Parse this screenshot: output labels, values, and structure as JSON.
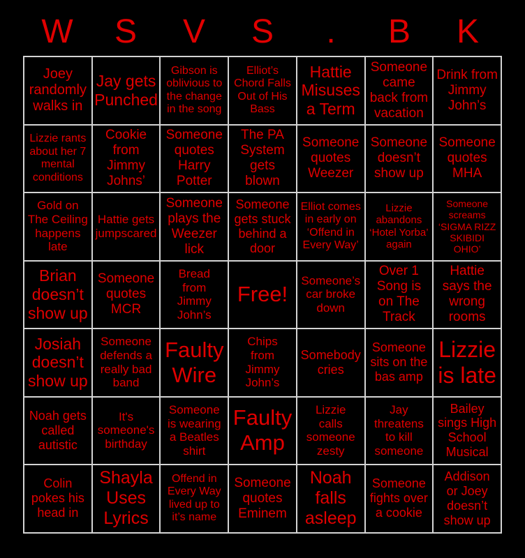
{
  "colors": {
    "background": "#000000",
    "cell_background": "#000000",
    "cell_text": "#e00000",
    "title_text": "#e00000",
    "grid_line": "#d4d4d4"
  },
  "title": {
    "text": "W S V S . B K",
    "letters": [
      "W",
      "S",
      "V",
      "S",
      ".",
      "B",
      "K"
    ]
  },
  "grid": {
    "rows": [
      [
        {
          "text": "Joey\nrandomly\nwalks in",
          "size": 20
        },
        {
          "text": "Jay gets\nPunched",
          "size": 23
        },
        {
          "text": "Gibson is\noblivious to\nthe change\nin the song",
          "size": 16
        },
        {
          "text": "Elliot’s\nChord Falls\nOut of His\nBass",
          "size": 16
        },
        {
          "text": "Hattie\nMisuses\na Term",
          "size": 23
        },
        {
          "text": "Someone\ncame\nback from\nvacation",
          "size": 19
        },
        {
          "text": "Drink from\nJimmy\nJohn’s",
          "size": 19
        }
      ],
      [
        {
          "text": "Lizzie rants\nabout her 7\nmental\nconditions",
          "size": 16
        },
        {
          "text": "Cookie\nfrom\nJimmy\nJohns’",
          "size": 19
        },
        {
          "text": "Someone\nquotes\nHarry\nPotter",
          "size": 19
        },
        {
          "text": "The PA\nSystem\ngets\nblown",
          "size": 19
        },
        {
          "text": "Someone\nquotes\nWeezer",
          "size": 19
        },
        {
          "text": "Someone\ndoesn’t\nshow up",
          "size": 19
        },
        {
          "text": "Someone\nquotes\nMHA",
          "size": 19
        }
      ],
      [
        {
          "text": "Gold on\nThe Ceiling\nhappens\nlate",
          "size": 17
        },
        {
          "text": "Hattie gets\njumpscared",
          "size": 17
        },
        {
          "text": "Someone\nplays the\nWeezer\nlick",
          "size": 19
        },
        {
          "text": "Someone\ngets stuck\nbehind a\ndoor",
          "size": 18
        },
        {
          "text": "Elliot comes\nin early on\n‘Offend in\nEvery Way’",
          "size": 16
        },
        {
          "text": "Lizzie\nabandons\n‘Hotel Yorba’\nagain",
          "size": 15
        },
        {
          "text": "Someone\nscreams\n‘SIGMA RIZZ\nSKIBIDI\nOHIO’",
          "size": 14
        }
      ],
      [
        {
          "text": "Brian\ndoesn’t\nshow up",
          "size": 23
        },
        {
          "text": "Someone\nquotes\nMCR",
          "size": 19
        },
        {
          "text": "Bread\nfrom\nJimmy\nJohn’s",
          "size": 17
        },
        {
          "text": "Free!",
          "size": 31
        },
        {
          "text": "Someone’s\ncar broke\ndown",
          "size": 17
        },
        {
          "text": "Over 1\nSong is\non The\nTrack",
          "size": 19
        },
        {
          "text": "Hattie\nsays the\nwrong\nrooms",
          "size": 19
        }
      ],
      [
        {
          "text": "Josiah\ndoesn’t\nshow up",
          "size": 23
        },
        {
          "text": "Someone\ndefends a\nreally bad\nband",
          "size": 17
        },
        {
          "text": "Faulty\nWire",
          "size": 31
        },
        {
          "text": "Chips\nfrom\nJimmy\nJohn’s",
          "size": 17
        },
        {
          "text": "Somebody\ncries",
          "size": 18
        },
        {
          "text": "Someone\nsits on the\nbas amp",
          "size": 18
        },
        {
          "text": "Lizzie\nis late",
          "size": 32
        }
      ],
      [
        {
          "text": "Noah gets\ncalled\nautistic",
          "size": 18
        },
        {
          "text": "It's\nsomeone's\nbirthday",
          "size": 17
        },
        {
          "text": "Someone\nis wearing\na Beatles\nshirt",
          "size": 17
        },
        {
          "text": "Faulty\nAmp",
          "size": 31
        },
        {
          "text": "Lizzie\ncalls\nsomeone\nzesty",
          "size": 17
        },
        {
          "text": "Jay\nthreatens\nto kill\nsomeone",
          "size": 17
        },
        {
          "text": "Bailey\nsings High\nSchool\nMusical",
          "size": 18
        }
      ],
      [
        {
          "text": "Colin\npokes his\nhead in",
          "size": 18
        },
        {
          "text": "Shayla\nUses\nLyrics",
          "size": 25
        },
        {
          "text": "Offend in\nEvery Way\nlived up to\nit’s name",
          "size": 16
        },
        {
          "text": "Someone\nquotes\nEminem",
          "size": 19
        },
        {
          "text": "Noah\nfalls\nasleep",
          "size": 25
        },
        {
          "text": "Someone\nfights over\na cookie",
          "size": 18
        },
        {
          "text": "Addison\nor Joey\ndoesn’t\nshow up",
          "size": 18
        }
      ]
    ]
  }
}
